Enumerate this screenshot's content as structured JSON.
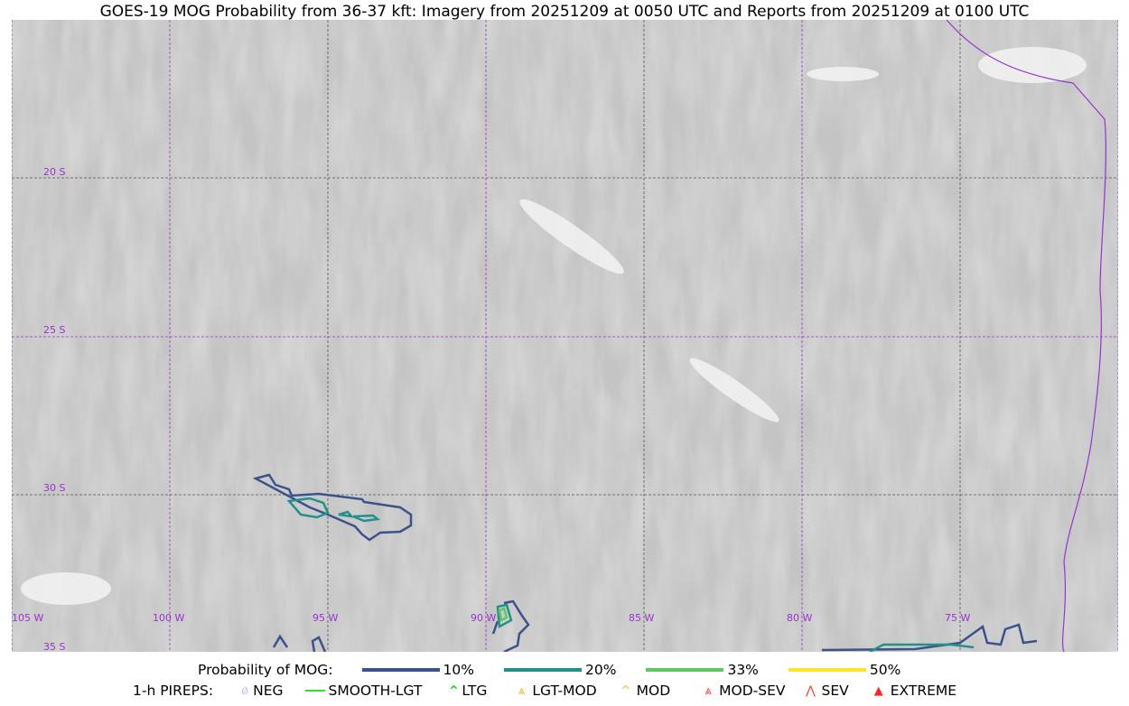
{
  "title": "GOES-19 MOG Probability from 36-37 kft: Imagery from 20251209 at 0050 UTC and Reports from 20251209 at 0100 UTC",
  "map": {
    "longitude_labels": [
      "105 W",
      "100 W",
      "95 W",
      "90 W",
      "85 W",
      "80 W",
      "75 W"
    ],
    "latitude_labels": [
      "20 S",
      "25 S",
      "30 S",
      "35 S"
    ],
    "grid_color": "#9933cc",
    "coast_color": "#9933cc"
  },
  "legend": {
    "probability_label": "Probability of MOG:",
    "probability_items": [
      {
        "label": "10%",
        "color": "#3b528b"
      },
      {
        "label": "20%",
        "color": "#21918c"
      },
      {
        "label": "33%",
        "color": "#5ec962"
      },
      {
        "label": "50%",
        "color": "#fde725"
      }
    ],
    "pireps_label": "1-h PIREPS:",
    "pireps_items": [
      {
        "label": "NEG",
        "color": "#c8c8f0",
        "icon": "neg-icon"
      },
      {
        "label": "SMOOTH-LGT",
        "color": "#33dd33",
        "icon": "smooth-lgt-line-icon"
      },
      {
        "label": "LTG",
        "color": "#00dd00",
        "icon": "caret-icon"
      },
      {
        "label": "LGT-MOD",
        "color": "#ffb020",
        "icon": "caret-underline-icon"
      },
      {
        "label": "MOD",
        "color": "#ffb020",
        "icon": "caret-icon"
      },
      {
        "label": "MOD-SEV",
        "color": "#ff3333",
        "icon": "double-caret-underline-icon"
      },
      {
        "label": "SEV",
        "color": "#ff3333",
        "icon": "double-caret-icon"
      },
      {
        "label": "EXTREME",
        "color": "#ff2222",
        "icon": "filled-triangle-icon"
      }
    ]
  }
}
